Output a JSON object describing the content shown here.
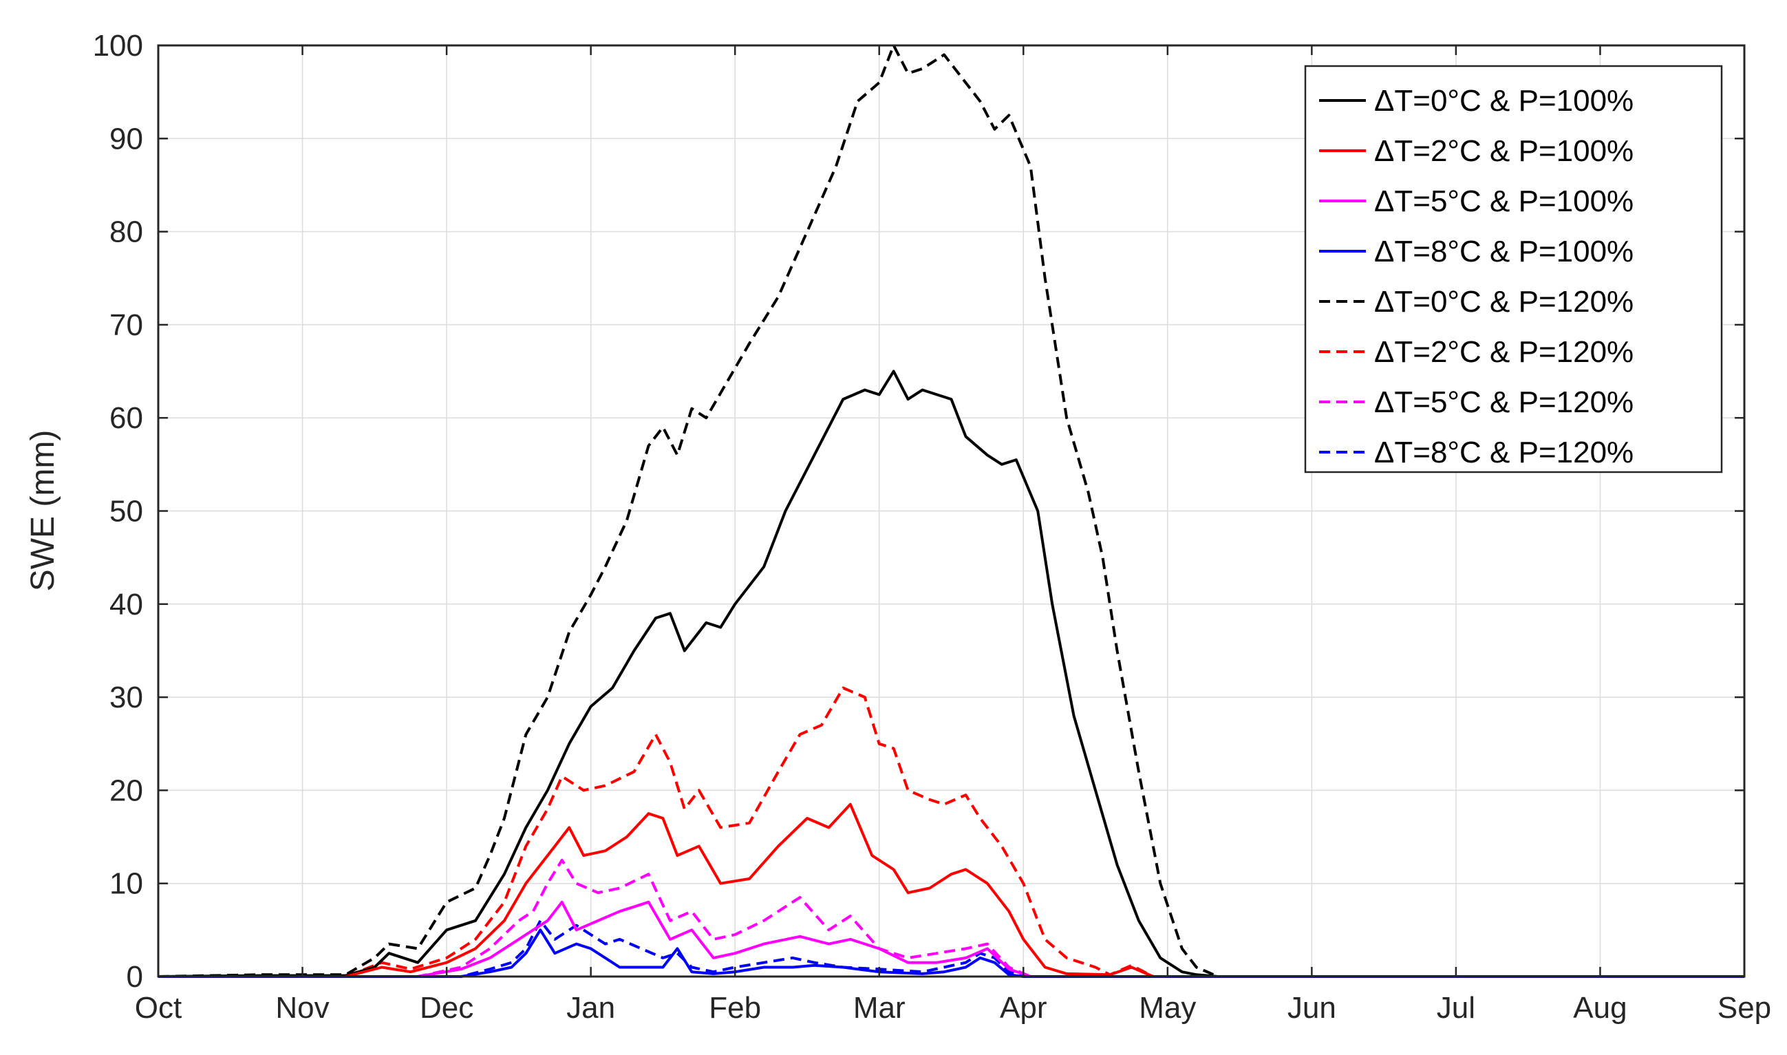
{
  "chart_data": {
    "type": "line",
    "title": "",
    "xlabel": "",
    "ylabel": "SWE (mm)",
    "ylim": [
      0,
      100
    ],
    "yticks": [
      0,
      10,
      20,
      30,
      40,
      50,
      60,
      70,
      80,
      90,
      100
    ],
    "xlim": [
      0,
      11
    ],
    "xtick_labels": [
      "Oct",
      "Nov",
      "Dec",
      "Jan",
      "Feb",
      "Mar",
      "Apr",
      "May",
      "Jun",
      "Jul",
      "Aug",
      "Sep"
    ],
    "x_unit": "months since Oct",
    "grid": true,
    "legend_position": "top-right",
    "series": [
      {
        "name": "ΔT=0°C & P=100%",
        "color": "#000000",
        "dash": "solid",
        "points": [
          [
            0,
            0
          ],
          [
            0.7,
            0.1
          ],
          [
            1.3,
            0.1
          ],
          [
            1.5,
            1
          ],
          [
            1.6,
            2.5
          ],
          [
            1.8,
            1.5
          ],
          [
            2.0,
            5
          ],
          [
            2.2,
            6
          ],
          [
            2.4,
            11
          ],
          [
            2.55,
            16
          ],
          [
            2.7,
            20
          ],
          [
            2.85,
            25
          ],
          [
            3.0,
            29
          ],
          [
            3.15,
            31
          ],
          [
            3.3,
            35
          ],
          [
            3.45,
            38.5
          ],
          [
            3.55,
            39
          ],
          [
            3.65,
            35
          ],
          [
            3.8,
            38
          ],
          [
            3.9,
            37.5
          ],
          [
            4.0,
            40
          ],
          [
            4.2,
            44
          ],
          [
            4.35,
            50
          ],
          [
            4.55,
            56
          ],
          [
            4.75,
            62
          ],
          [
            4.9,
            63
          ],
          [
            5.0,
            62.5
          ],
          [
            5.1,
            65
          ],
          [
            5.2,
            62
          ],
          [
            5.3,
            63
          ],
          [
            5.5,
            62
          ],
          [
            5.6,
            58
          ],
          [
            5.75,
            56
          ],
          [
            5.85,
            55
          ],
          [
            5.95,
            55.5
          ],
          [
            6.1,
            50
          ],
          [
            6.2,
            40
          ],
          [
            6.35,
            28
          ],
          [
            6.5,
            20
          ],
          [
            6.65,
            12
          ],
          [
            6.8,
            6
          ],
          [
            6.95,
            2
          ],
          [
            7.1,
            0.5
          ],
          [
            7.2,
            0.2
          ],
          [
            7.35,
            0
          ],
          [
            11,
            0
          ]
        ]
      },
      {
        "name": "ΔT=2°C & P=100%",
        "color": "#ff0000",
        "dash": "solid",
        "points": [
          [
            0,
            0
          ],
          [
            1.3,
            0
          ],
          [
            1.55,
            1
          ],
          [
            1.75,
            0.5
          ],
          [
            2.0,
            1.5
          ],
          [
            2.2,
            3
          ],
          [
            2.4,
            6
          ],
          [
            2.55,
            10
          ],
          [
            2.75,
            14
          ],
          [
            2.85,
            16
          ],
          [
            2.95,
            13
          ],
          [
            3.1,
            13.5
          ],
          [
            3.25,
            15
          ],
          [
            3.4,
            17.5
          ],
          [
            3.5,
            17
          ],
          [
            3.6,
            13
          ],
          [
            3.75,
            14
          ],
          [
            3.9,
            10
          ],
          [
            4.1,
            10.5
          ],
          [
            4.3,
            14
          ],
          [
            4.5,
            17
          ],
          [
            4.65,
            16
          ],
          [
            4.8,
            18.5
          ],
          [
            4.95,
            13
          ],
          [
            5.1,
            11.5
          ],
          [
            5.2,
            9
          ],
          [
            5.35,
            9.5
          ],
          [
            5.5,
            11
          ],
          [
            5.6,
            11.5
          ],
          [
            5.75,
            10
          ],
          [
            5.9,
            7
          ],
          [
            6.0,
            4
          ],
          [
            6.15,
            1
          ],
          [
            6.3,
            0.3
          ],
          [
            6.6,
            0.2
          ],
          [
            6.75,
            1
          ],
          [
            6.9,
            0
          ],
          [
            11,
            0
          ]
        ]
      },
      {
        "name": "ΔT=5°C & P=100%",
        "color": "#ff00ff",
        "dash": "solid",
        "points": [
          [
            0,
            0
          ],
          [
            1.8,
            0
          ],
          [
            2.1,
            0.8
          ],
          [
            2.3,
            2
          ],
          [
            2.5,
            4
          ],
          [
            2.6,
            5
          ],
          [
            2.7,
            6
          ],
          [
            2.8,
            8
          ],
          [
            2.9,
            5
          ],
          [
            3.05,
            6
          ],
          [
            3.2,
            7
          ],
          [
            3.4,
            8
          ],
          [
            3.55,
            4
          ],
          [
            3.7,
            5
          ],
          [
            3.85,
            2
          ],
          [
            4.0,
            2.5
          ],
          [
            4.2,
            3.5
          ],
          [
            4.45,
            4.3
          ],
          [
            4.65,
            3.5
          ],
          [
            4.8,
            4
          ],
          [
            5.0,
            3
          ],
          [
            5.2,
            1.5
          ],
          [
            5.4,
            1.5
          ],
          [
            5.6,
            2
          ],
          [
            5.75,
            3
          ],
          [
            5.9,
            0.8
          ],
          [
            6.05,
            0
          ],
          [
            11,
            0
          ]
        ]
      },
      {
        "name": "ΔT=8°C & P=100%",
        "color": "#0000ff",
        "dash": "solid",
        "points": [
          [
            0,
            0
          ],
          [
            2.1,
            0
          ],
          [
            2.3,
            0.5
          ],
          [
            2.45,
            1
          ],
          [
            2.55,
            2.5
          ],
          [
            2.65,
            5
          ],
          [
            2.75,
            2.5
          ],
          [
            2.9,
            3.5
          ],
          [
            3.0,
            3
          ],
          [
            3.1,
            2
          ],
          [
            3.2,
            1
          ],
          [
            3.5,
            1
          ],
          [
            3.6,
            3
          ],
          [
            3.7,
            0.5
          ],
          [
            3.85,
            0.3
          ],
          [
            4.0,
            0.5
          ],
          [
            4.2,
            1
          ],
          [
            4.4,
            1
          ],
          [
            4.55,
            1.2
          ],
          [
            4.75,
            1
          ],
          [
            5.0,
            0.5
          ],
          [
            5.3,
            0.3
          ],
          [
            5.45,
            0.5
          ],
          [
            5.6,
            1
          ],
          [
            5.7,
            2
          ],
          [
            5.8,
            1.5
          ],
          [
            5.9,
            0.2
          ],
          [
            6.0,
            0
          ],
          [
            11,
            0
          ]
        ]
      },
      {
        "name": "ΔT=0°C & P=120%",
        "color": "#000000",
        "dash": "dashed",
        "points": [
          [
            0,
            0
          ],
          [
            0.7,
            0.2
          ],
          [
            1.3,
            0.2
          ],
          [
            1.5,
            2
          ],
          [
            1.6,
            3.5
          ],
          [
            1.8,
            3
          ],
          [
            2.0,
            8
          ],
          [
            2.2,
            9.5
          ],
          [
            2.3,
            13
          ],
          [
            2.4,
            17
          ],
          [
            2.55,
            26
          ],
          [
            2.7,
            30
          ],
          [
            2.85,
            37
          ],
          [
            3.0,
            41
          ],
          [
            3.1,
            44
          ],
          [
            3.25,
            49
          ],
          [
            3.4,
            57
          ],
          [
            3.5,
            59
          ],
          [
            3.6,
            56
          ],
          [
            3.7,
            61
          ],
          [
            3.8,
            60
          ],
          [
            3.95,
            64
          ],
          [
            4.1,
            68
          ],
          [
            4.3,
            73
          ],
          [
            4.5,
            80
          ],
          [
            4.7,
            87
          ],
          [
            4.85,
            94
          ],
          [
            5.0,
            96
          ],
          [
            5.1,
            100
          ],
          [
            5.2,
            97
          ],
          [
            5.3,
            97.5
          ],
          [
            5.45,
            99
          ],
          [
            5.55,
            97
          ],
          [
            5.7,
            94
          ],
          [
            5.8,
            91
          ],
          [
            5.9,
            92.5
          ],
          [
            6.05,
            87
          ],
          [
            6.15,
            75
          ],
          [
            6.3,
            60
          ],
          [
            6.45,
            52
          ],
          [
            6.55,
            45
          ],
          [
            6.65,
            35
          ],
          [
            6.8,
            22
          ],
          [
            6.95,
            10
          ],
          [
            7.1,
            3
          ],
          [
            7.2,
            1
          ],
          [
            7.35,
            0
          ],
          [
            11,
            0
          ]
        ]
      },
      {
        "name": "ΔT=2°C & P=120%",
        "color": "#ff0000",
        "dash": "dashed",
        "points": [
          [
            0,
            0
          ],
          [
            1.3,
            0
          ],
          [
            1.55,
            1.5
          ],
          [
            1.75,
            0.8
          ],
          [
            2.0,
            2
          ],
          [
            2.2,
            4
          ],
          [
            2.4,
            8
          ],
          [
            2.55,
            14
          ],
          [
            2.7,
            18
          ],
          [
            2.8,
            21.5
          ],
          [
            2.95,
            20
          ],
          [
            3.1,
            20.5
          ],
          [
            3.3,
            22
          ],
          [
            3.45,
            26
          ],
          [
            3.55,
            23
          ],
          [
            3.65,
            18
          ],
          [
            3.75,
            20
          ],
          [
            3.9,
            16
          ],
          [
            4.1,
            16.5
          ],
          [
            4.3,
            22
          ],
          [
            4.45,
            26
          ],
          [
            4.6,
            27
          ],
          [
            4.75,
            31
          ],
          [
            4.9,
            30
          ],
          [
            5.0,
            25
          ],
          [
            5.1,
            24.5
          ],
          [
            5.2,
            20
          ],
          [
            5.35,
            19
          ],
          [
            5.45,
            18.5
          ],
          [
            5.6,
            19.5
          ],
          [
            5.7,
            17
          ],
          [
            5.85,
            14
          ],
          [
            6.0,
            10
          ],
          [
            6.15,
            4
          ],
          [
            6.3,
            2
          ],
          [
            6.5,
            1
          ],
          [
            6.6,
            0.2
          ],
          [
            6.75,
            1.2
          ],
          [
            6.9,
            0
          ],
          [
            11,
            0
          ]
        ]
      },
      {
        "name": "ΔT=5°C & P=120%",
        "color": "#ff00ff",
        "dash": "dashed",
        "points": [
          [
            0,
            0
          ],
          [
            1.8,
            0
          ],
          [
            2.1,
            1
          ],
          [
            2.3,
            3
          ],
          [
            2.5,
            6
          ],
          [
            2.6,
            7
          ],
          [
            2.7,
            10
          ],
          [
            2.8,
            12.5
          ],
          [
            2.9,
            10
          ],
          [
            3.05,
            9
          ],
          [
            3.2,
            9.5
          ],
          [
            3.4,
            11
          ],
          [
            3.55,
            6
          ],
          [
            3.7,
            7
          ],
          [
            3.85,
            4
          ],
          [
            4.0,
            4.5
          ],
          [
            4.2,
            6
          ],
          [
            4.45,
            8.5
          ],
          [
            4.65,
            5
          ],
          [
            4.8,
            6.5
          ],
          [
            5.0,
            3
          ],
          [
            5.2,
            2
          ],
          [
            5.4,
            2.5
          ],
          [
            5.6,
            3
          ],
          [
            5.75,
            3.5
          ],
          [
            5.9,
            1
          ],
          [
            6.05,
            0
          ],
          [
            11,
            0
          ]
        ]
      },
      {
        "name": "ΔT=8°C & P=120%",
        "color": "#0000ff",
        "dash": "dashed",
        "points": [
          [
            0,
            0
          ],
          [
            2.1,
            0
          ],
          [
            2.3,
            0.8
          ],
          [
            2.45,
            1.5
          ],
          [
            2.55,
            3
          ],
          [
            2.65,
            6
          ],
          [
            2.75,
            4
          ],
          [
            2.9,
            5.5
          ],
          [
            3.0,
            4.5
          ],
          [
            3.1,
            3.5
          ],
          [
            3.2,
            4
          ],
          [
            3.5,
            2
          ],
          [
            3.6,
            2.5
          ],
          [
            3.7,
            1
          ],
          [
            3.85,
            0.5
          ],
          [
            4.0,
            1
          ],
          [
            4.2,
            1.5
          ],
          [
            4.4,
            2
          ],
          [
            4.55,
            1.5
          ],
          [
            4.75,
            1
          ],
          [
            5.0,
            0.8
          ],
          [
            5.3,
            0.5
          ],
          [
            5.45,
            1
          ],
          [
            5.6,
            1.5
          ],
          [
            5.7,
            2.5
          ],
          [
            5.8,
            2
          ],
          [
            5.9,
            0.5
          ],
          [
            6.0,
            0
          ],
          [
            11,
            0
          ]
        ]
      }
    ]
  }
}
